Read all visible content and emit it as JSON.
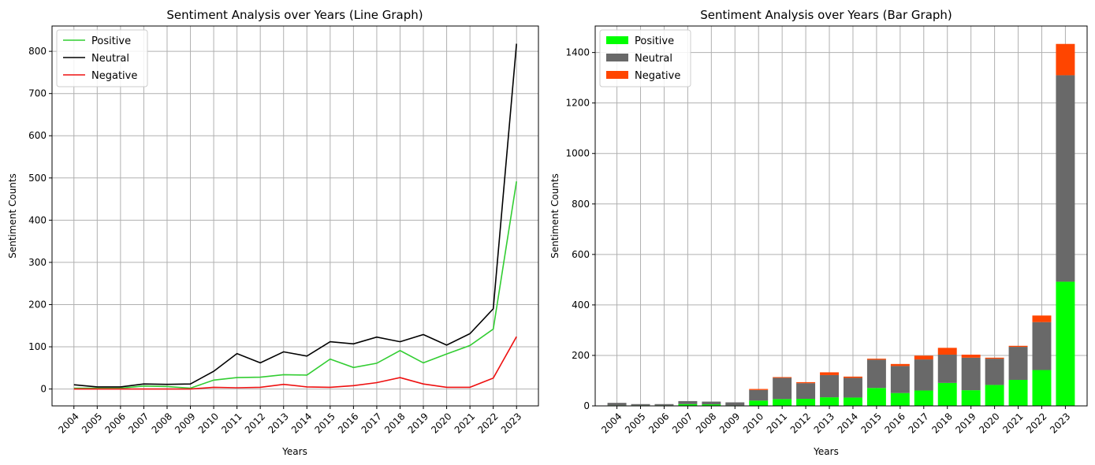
{
  "chart_data": [
    {
      "type": "line",
      "title": "Sentiment Analysis over Years (Line Graph)",
      "xlabel": "Years",
      "ylabel": "Sentiment Counts",
      "categories": [
        "2004",
        "2005",
        "2006",
        "2007",
        "2008",
        "2009",
        "2010",
        "2011",
        "2012",
        "2013",
        "2014",
        "2015",
        "2016",
        "2017",
        "2018",
        "2019",
        "2020",
        "2021",
        "2022",
        "2023"
      ],
      "yticks": [
        0,
        100,
        200,
        300,
        400,
        500,
        600,
        700,
        800
      ],
      "ylim": [
        -40,
        860
      ],
      "grid": true,
      "legend_position": "top-left",
      "series": [
        {
          "name": "Positive",
          "color": "#32cd32",
          "values": [
            2,
            2,
            2,
            7,
            6,
            2,
            21,
            27,
            28,
            34,
            33,
            71,
            51,
            61,
            91,
            62,
            83,
            103,
            142,
            492
          ]
        },
        {
          "name": "Neutral",
          "color": "#000000",
          "values": [
            10,
            5,
            5,
            12,
            11,
            12,
            42,
            84,
            62,
            88,
            78,
            112,
            107,
            123,
            112,
            129,
            104,
            131,
            190,
            818
          ]
        },
        {
          "name": "Negative",
          "color": "#ee1111",
          "values": [
            0,
            0,
            0,
            0,
            0,
            0,
            4,
            3,
            4,
            11,
            5,
            4,
            8,
            15,
            27,
            12,
            4,
            4,
            26,
            124
          ]
        }
      ]
    },
    {
      "type": "bar",
      "stacked": true,
      "title": "Sentiment Analysis over Years (Bar Graph)",
      "xlabel": "Years",
      "ylabel": "Sentiment Counts",
      "categories": [
        "2004",
        "2005",
        "2006",
        "2007",
        "2008",
        "2009",
        "2010",
        "2011",
        "2012",
        "2013",
        "2014",
        "2015",
        "2016",
        "2017",
        "2018",
        "2019",
        "2020",
        "2021",
        "2022",
        "2023"
      ],
      "yticks": [
        0,
        200,
        400,
        600,
        800,
        1000,
        1200,
        1400
      ],
      "ylim": [
        0,
        1505
      ],
      "grid": true,
      "legend_position": "top-left",
      "series": [
        {
          "name": "Positive",
          "color": "#00ff00",
          "values": [
            2,
            2,
            2,
            7,
            6,
            2,
            21,
            27,
            28,
            34,
            33,
            71,
            51,
            61,
            91,
            62,
            83,
            103,
            142,
            492
          ]
        },
        {
          "name": "Neutral",
          "color": "#696969",
          "values": [
            10,
            5,
            5,
            12,
            11,
            12,
            42,
            84,
            62,
            88,
            78,
            112,
            107,
            123,
            112,
            129,
            104,
            131,
            190,
            818
          ]
        },
        {
          "name": "Negative",
          "color": "#ff4500",
          "values": [
            0,
            0,
            0,
            0,
            0,
            0,
            4,
            3,
            4,
            11,
            5,
            4,
            8,
            15,
            27,
            12,
            4,
            4,
            26,
            124
          ]
        }
      ]
    }
  ]
}
